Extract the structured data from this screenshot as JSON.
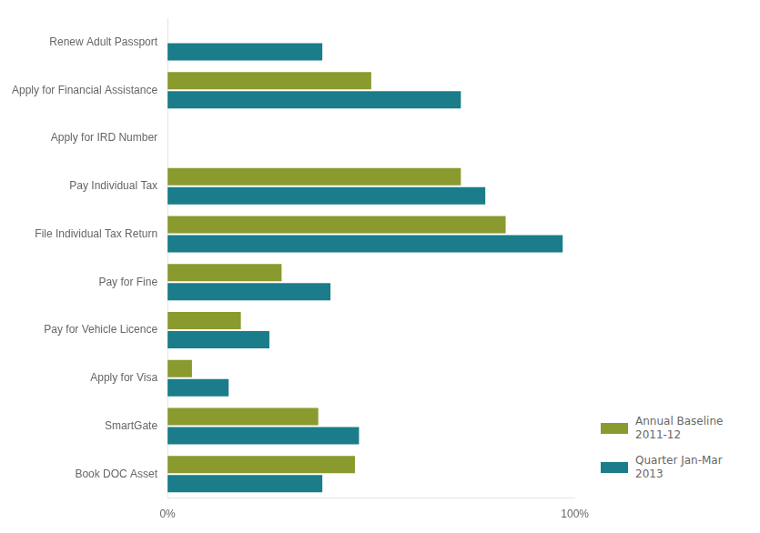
{
  "chart_data": {
    "type": "bar",
    "orientation": "horizontal",
    "categories": [
      "Book DOC Asset",
      "SmartGate",
      "Apply for Visa",
      "Pay for Vehicle Licence",
      "Pay for Fine",
      "File Individual Tax Return",
      "Pay Individual Tax",
      "Apply for IRD Number",
      "Apply for Financial Assistance",
      "Renew Adult Passport"
    ],
    "series": [
      {
        "name": "Annual Baseline\n2011-12",
        "color": "#8B9A2E",
        "values": [
          46,
          37,
          6,
          18,
          28,
          83,
          72,
          0,
          50,
          0
        ]
      },
      {
        "name": "Quarter Jan-Mar\n2013",
        "color": "#1B7C8A",
        "values": [
          38,
          47,
          15,
          25,
          40,
          97,
          78,
          0,
          72,
          38
        ]
      }
    ],
    "xlim": [
      0,
      100
    ],
    "xticks": [
      {
        "value": 0,
        "label": "0%"
      },
      {
        "value": 100,
        "label": "100%"
      }
    ],
    "grid": false,
    "legend": "lower right"
  }
}
